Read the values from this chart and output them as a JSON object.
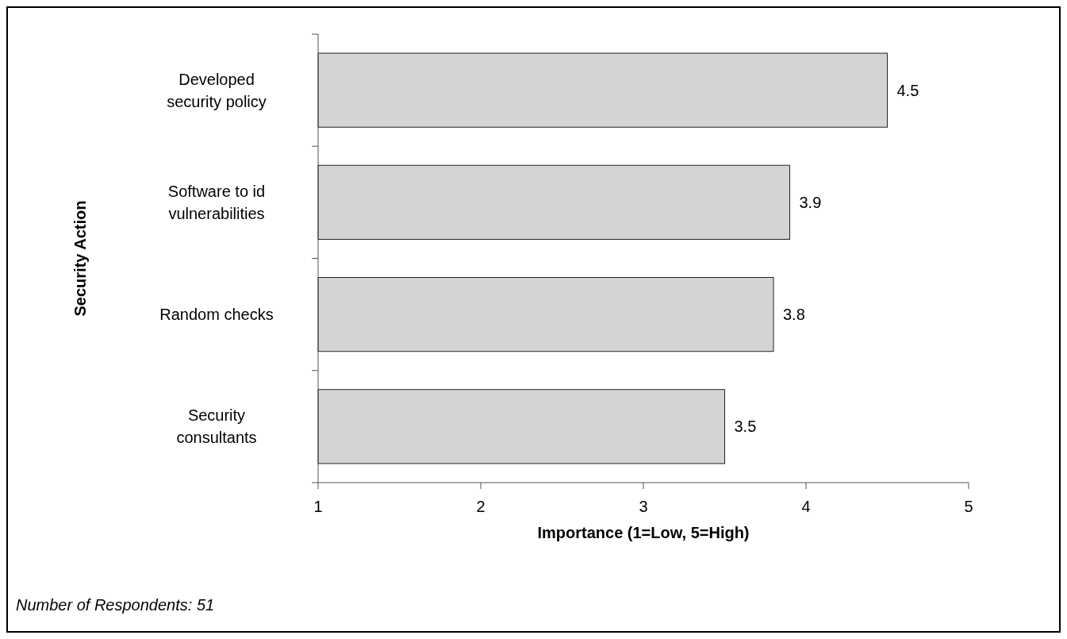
{
  "chart_data": {
    "type": "bar",
    "orientation": "horizontal",
    "categories": [
      "Developed security policy",
      "Software to id vulnerabilities",
      "Random checks",
      "Security consultants"
    ],
    "values": [
      4.5,
      3.9,
      3.8,
      3.5
    ],
    "color": "#d4d4d4",
    "xlim": [
      1,
      5
    ],
    "xticks": [
      1,
      2,
      3,
      4,
      5
    ],
    "xlabel": "Importance (1=Low, 5=High)",
    "ylabel": "Security Action",
    "data_labels": true,
    "grid": false,
    "annotations": [
      "Number of Respondents: 51"
    ]
  }
}
